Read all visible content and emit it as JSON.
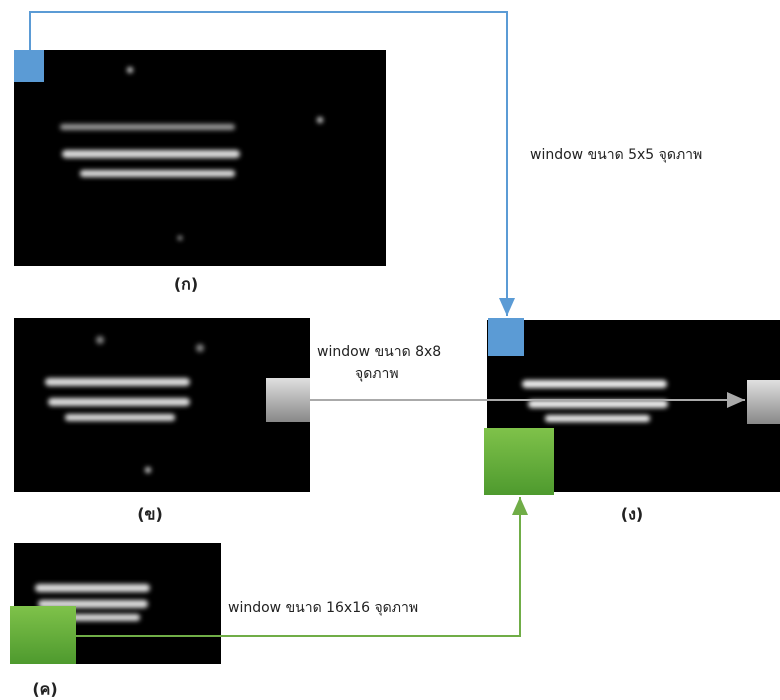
{
  "images": [
    {
      "label": "(ก)"
    },
    {
      "label": "(ข)"
    },
    {
      "label": "(ค)"
    },
    {
      "label": "(ง)"
    }
  ],
  "connections": [
    {
      "label": "window ขนาด 5x5 จุดภาพ"
    },
    {
      "label_lines": [
        "window ขนาด 8x8",
        "จุดภาพ"
      ]
    },
    {
      "label": "window ขนาด 16x16 จุดภาพ"
    }
  ]
}
